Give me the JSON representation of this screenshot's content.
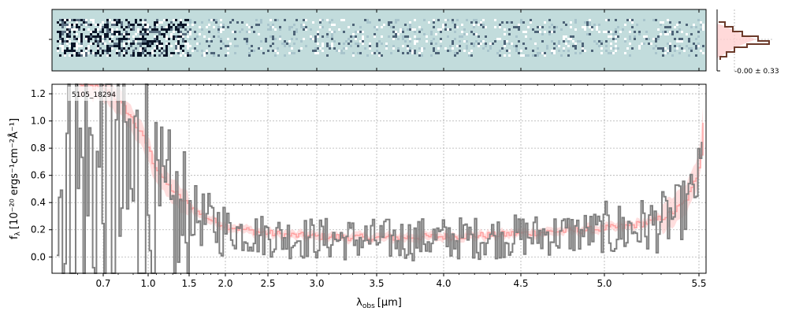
{
  "object_id": "5105_18294",
  "hist_label": "-0.00 ± 0.33",
  "colors": {
    "spectrum": "#808080",
    "model": "#ffa0a0",
    "ribbon": "#ffd0d0",
    "grid": "#b0b0b0",
    "panel_bg": "#c2dcdc",
    "hist": "#6b3a2a"
  },
  "spectrum_2d": {
    "description_free": true,
    "colormap_bg": "#c2dcdc",
    "colormap_dark": "#0a1528"
  },
  "chart_data": {
    "type": "line",
    "xlabel_main": "λ",
    "xlabel_sub": "obs",
    "xlabel_unit": "[μm]",
    "ylabel_main": "f",
    "ylabel_sub": "λ",
    "ylabel_unit": "[10⁻²⁰ ergs⁻¹cm⁻²Å⁻¹]",
    "xlim": [
      0.5,
      5.52
    ],
    "ylim": [
      -0.12,
      1.27
    ],
    "x_scale": "nonlinear (pixel)",
    "grid": true,
    "xticks": [
      0.7,
      1.0,
      1.5,
      2.0,
      2.5,
      3.0,
      3.5,
      4.0,
      4.5,
      5.0,
      5.5
    ],
    "xtick_labels": [
      "0.7",
      "1.0",
      "1.5",
      "2.0",
      "2.5",
      "3.0",
      "3.5",
      "4.0",
      "4.5",
      "5.0",
      "5.5"
    ],
    "yticks": [
      0.0,
      0.2,
      0.4,
      0.6,
      0.8,
      1.0,
      1.2
    ],
    "ytick_labels": [
      "0.0",
      "0.2",
      "0.4",
      "0.6",
      "0.8",
      "1.0",
      "1.2"
    ],
    "model_points": [
      [
        0.62,
        1.27
      ],
      [
        0.75,
        1.2
      ],
      [
        0.85,
        1.08
      ],
      [
        0.95,
        0.9
      ],
      [
        1.05,
        0.7
      ],
      [
        1.2,
        0.55
      ],
      [
        1.4,
        0.42
      ],
      [
        1.6,
        0.33
      ],
      [
        1.8,
        0.27
      ],
      [
        2.0,
        0.23
      ],
      [
        2.3,
        0.19
      ],
      [
        2.7,
        0.16
      ],
      [
        3.0,
        0.15
      ],
      [
        3.5,
        0.14
      ],
      [
        4.0,
        0.15
      ],
      [
        4.3,
        0.16
      ],
      [
        4.6,
        0.18
      ],
      [
        4.9,
        0.2
      ],
      [
        5.1,
        0.22
      ],
      [
        5.25,
        0.26
      ],
      [
        5.35,
        0.32
      ],
      [
        5.42,
        0.4
      ],
      [
        5.46,
        0.5
      ],
      [
        5.49,
        0.62
      ],
      [
        5.51,
        0.8
      ],
      [
        5.52,
        1.1
      ],
      [
        5.53,
        1.27
      ]
    ],
    "series": [
      {
        "values_note": "noisy step spectrum with large scatter below 1.5 μm"
      }
    ]
  }
}
